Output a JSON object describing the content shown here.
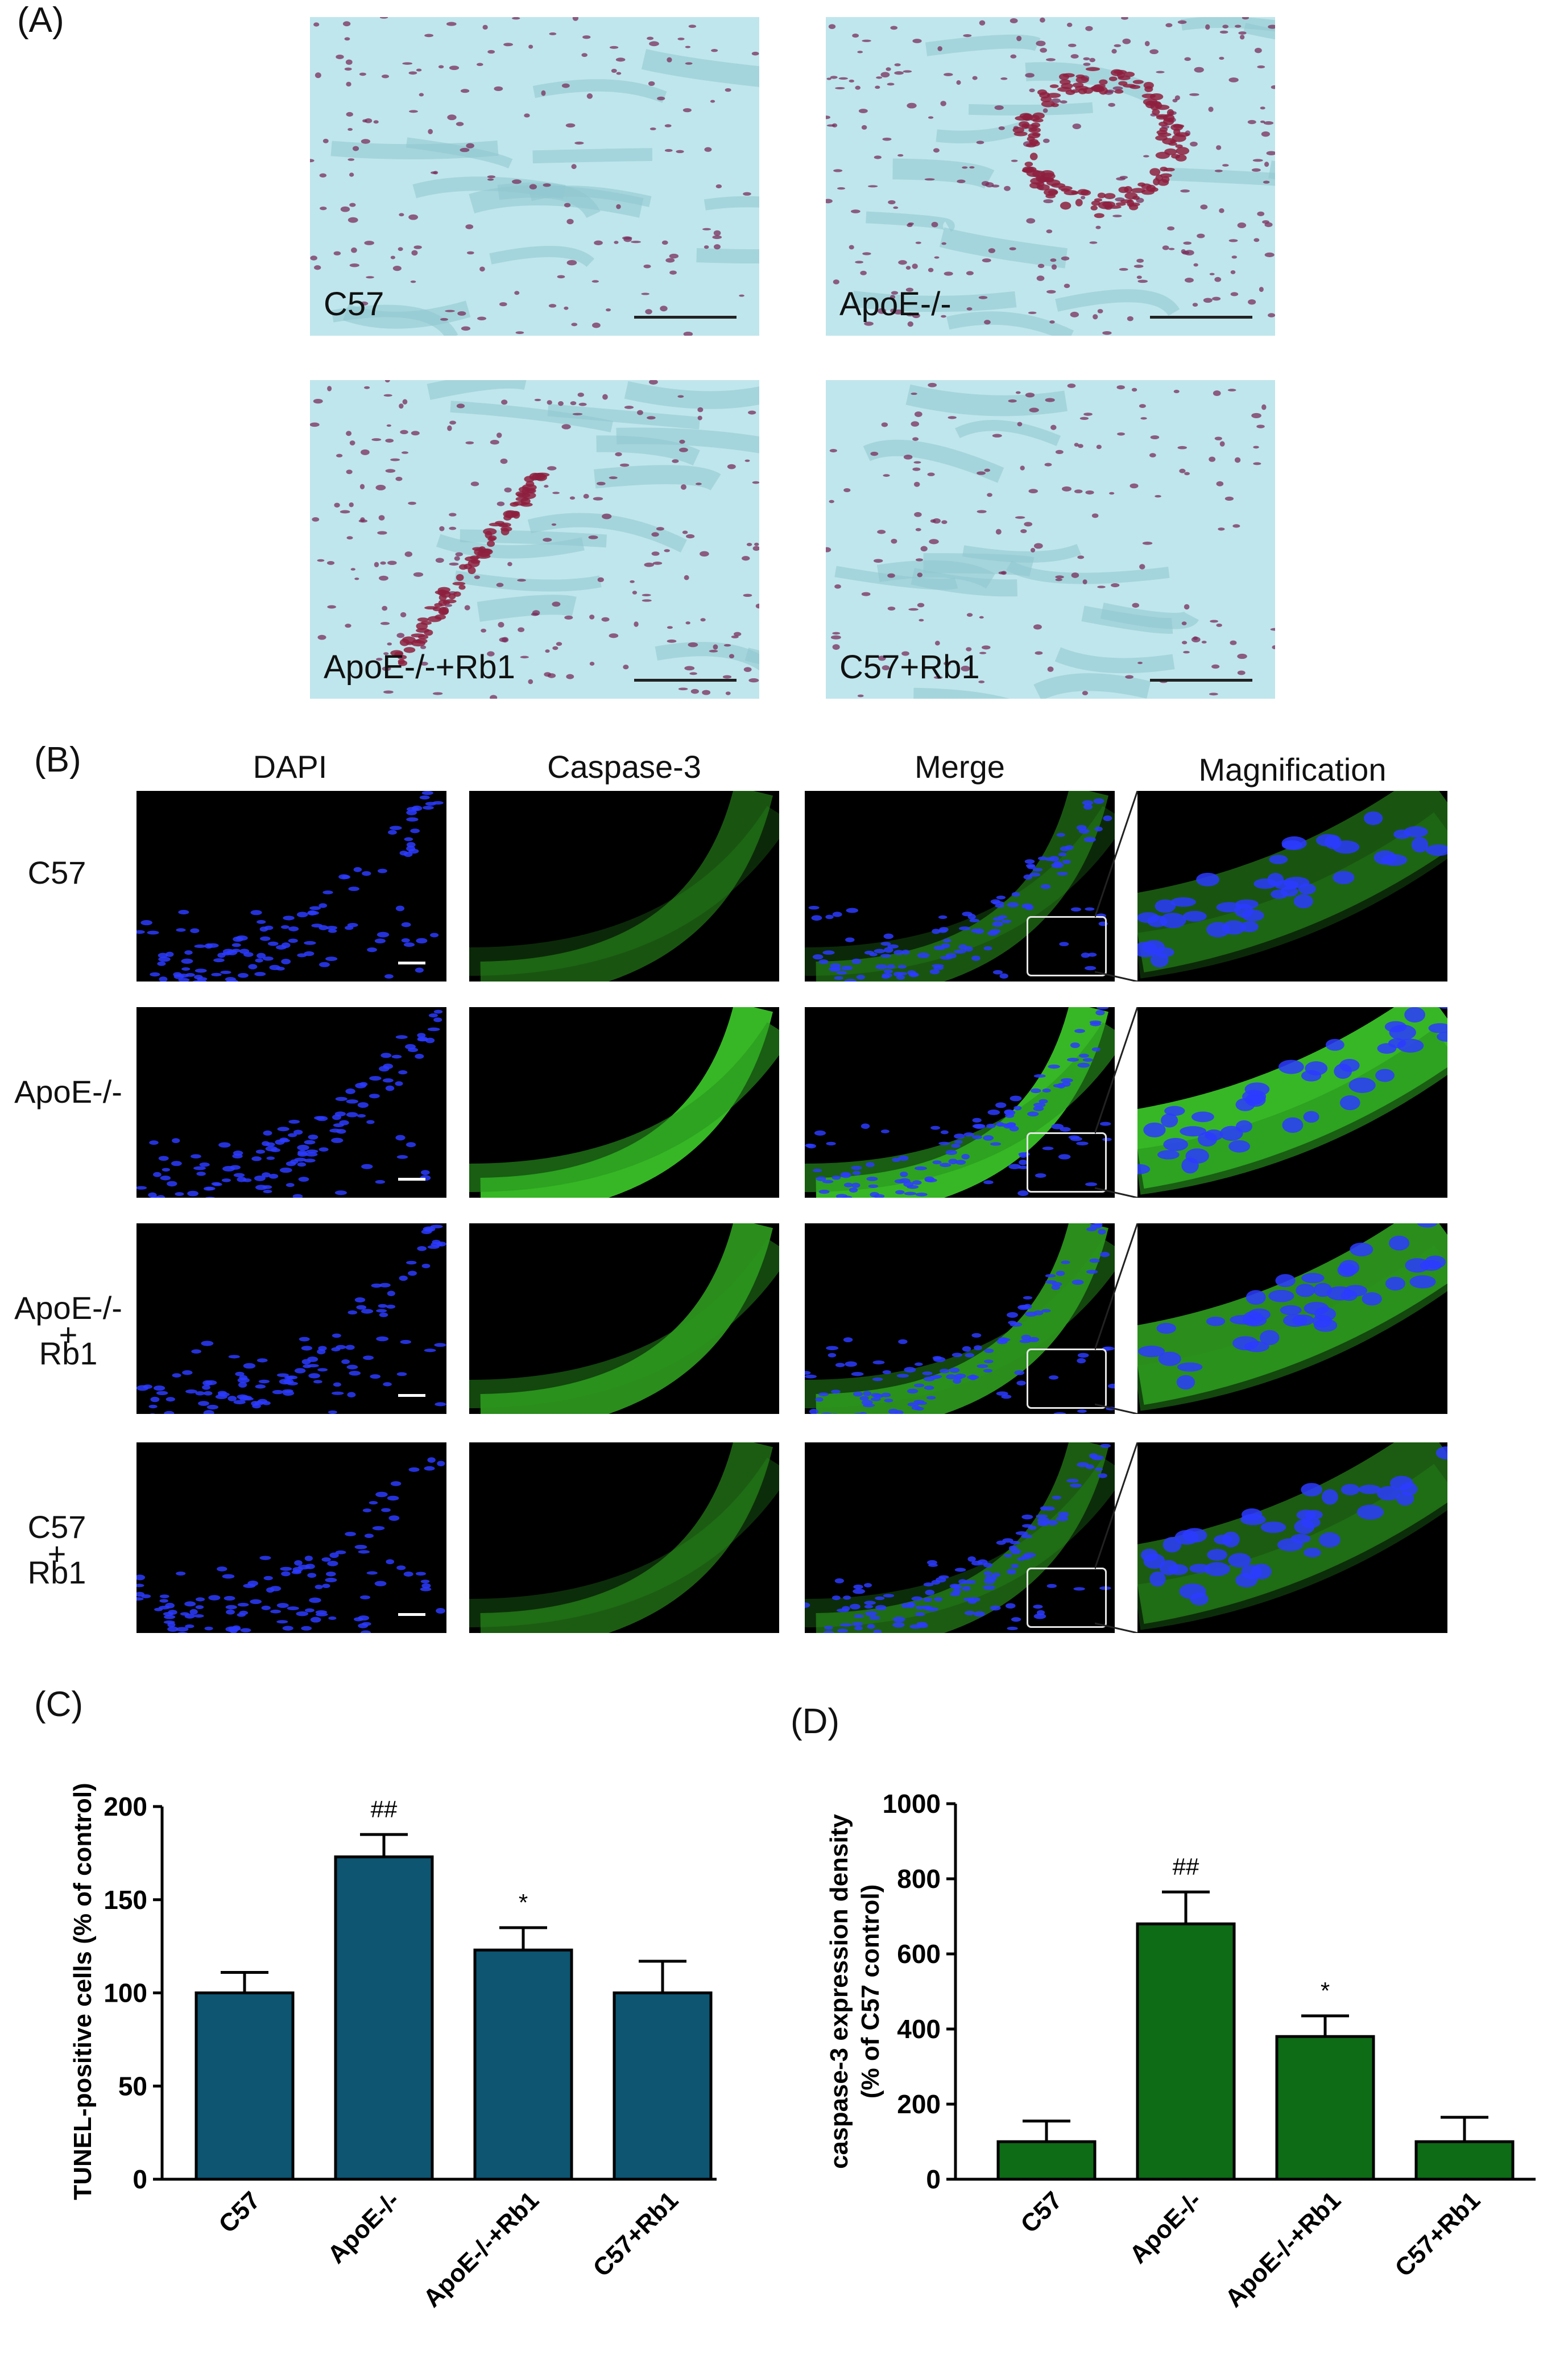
{
  "panelA": {
    "letter": "(A)",
    "images": [
      {
        "label": "C57",
        "stain": "light"
      },
      {
        "label": "ApoE-/-",
        "stain": "heavy"
      },
      {
        "label": "ApoE-/-+Rb1",
        "stain": "medium"
      },
      {
        "label": "C57+Rb1",
        "stain": "light"
      }
    ]
  },
  "panelB": {
    "letter": "(B)",
    "columns": [
      "DAPI",
      "Caspase-3",
      "Merge",
      "Magnification"
    ],
    "rows": [
      {
        "label_line1": "C57",
        "label_line2": "",
        "green_intensity": 0.25
      },
      {
        "label_line1": "ApoE-/-",
        "label_line2": "",
        "green_intensity": 0.95
      },
      {
        "label_line1": "ApoE-/-",
        "label_line2": "+\nRb1",
        "green_intensity": 0.65
      },
      {
        "label_line1": "C57",
        "label_line2": "+\nRb1",
        "green_intensity": 0.3
      }
    ]
  },
  "chart_data": [
    {
      "panel": "(C)",
      "type": "bar",
      "categories": [
        "C57",
        "ApoE-/-",
        "ApoE-/-+Rb1",
        "C57+Rb1"
      ],
      "values": [
        100,
        173,
        123,
        100
      ],
      "errors": [
        11,
        12,
        12,
        17
      ],
      "annotations": [
        "",
        "##",
        "*",
        ""
      ],
      "ylabel": "TUNEL-positive cells (% of control)",
      "ylim": [
        0,
        200
      ],
      "yticks": [
        0,
        50,
        100,
        150,
        200
      ],
      "color": "#0d5571"
    },
    {
      "panel": "(D)",
      "type": "bar",
      "categories": [
        "C57",
        "ApoE-/-",
        "ApoE-/-+Rb1",
        "C57+Rb1"
      ],
      "values": [
        100,
        680,
        380,
        100
      ],
      "errors": [
        55,
        85,
        55,
        65
      ],
      "annotations": [
        "",
        "##",
        "*",
        ""
      ],
      "ylabel_line1": "caspase-3 expression density",
      "ylabel_line2": "(% of C57 control)",
      "ylim": [
        0,
        1000
      ],
      "yticks": [
        0,
        200,
        400,
        600,
        800,
        1000
      ],
      "color": "#0e6b16"
    }
  ]
}
